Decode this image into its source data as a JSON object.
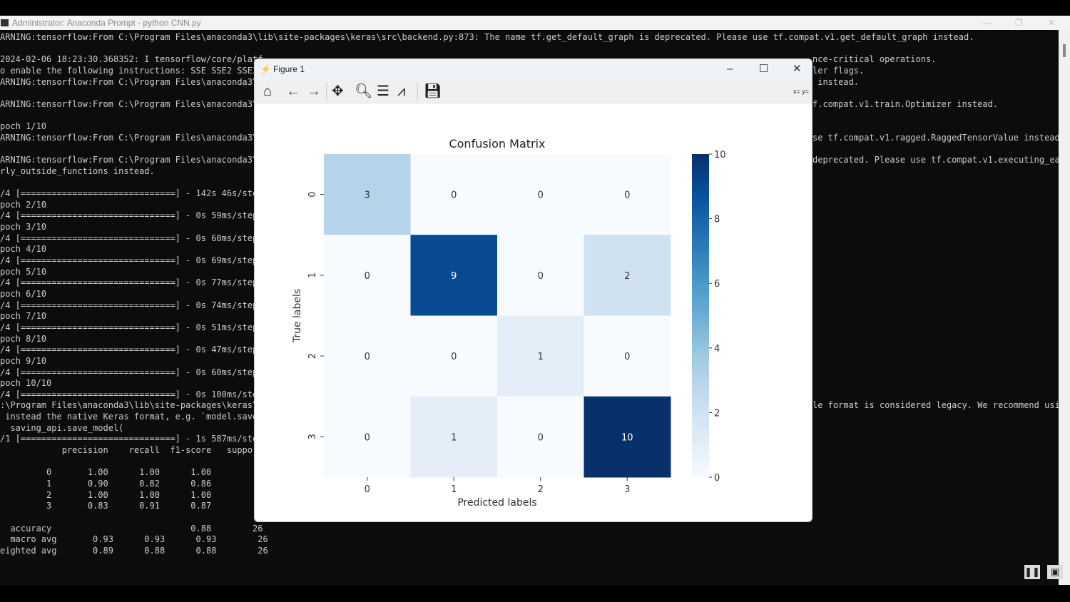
{
  "terminal": {
    "title": "Administrator: Anaconda Prompt - python  CNN.py",
    "lines": [
      {
        "row": 0,
        "left": "ARNING:tensorflow:From C:\\Program Files\\anaconda3\\lib\\site-packages\\keras\\src\\backend.py:873: The name tf.get_default_graph is deprecated. Please use tf.compat.v1.get_default_graph instead.",
        "right": ""
      },
      {
        "row": 2,
        "left": "2024-02-06 18:23:30.368352: I tensorflow/core/platf",
        "right": "nce-critical operations."
      },
      {
        "row": 3,
        "left": "o enable the following instructions: SSE SSE2 SSE3",
        "right": "ler flags."
      },
      {
        "row": 4,
        "left": "ARNING:tensorflow:From C:\\Program Files\\anaconda3\\",
        "right": " instead."
      },
      {
        "row": 6,
        "left": "ARNING:tensorflow:From C:\\Program Files\\anaconda3\\",
        "right": "f.compat.v1.train.Optimizer instead."
      },
      {
        "row": 8,
        "left": "poch 1/10",
        "right": ""
      },
      {
        "row": 9,
        "left": "ARNING:tensorflow:From C:\\Program Files\\anaconda3\\",
        "right": "se tf.compat.v1.ragged.RaggedTensorValue instead."
      },
      {
        "row": 11,
        "left": "ARNING:tensorflow:From C:\\Program Files\\anaconda3\\",
        "right": "deprecated. Please use tf.compat.v1.executing_eag"
      },
      {
        "row": 12,
        "left": "rly_outside_functions instead.",
        "right": ""
      },
      {
        "row": 14,
        "left": "/4 [==============================] - 142s 46s/ste",
        "right": ""
      },
      {
        "row": 15,
        "left": "poch 2/10",
        "right": ""
      },
      {
        "row": 16,
        "left": "/4 [==============================] - 0s 59ms/step",
        "right": ""
      },
      {
        "row": 17,
        "left": "poch 3/10",
        "right": ""
      },
      {
        "row": 18,
        "left": "/4 [==============================] - 0s 60ms/step",
        "right": ""
      },
      {
        "row": 19,
        "left": "poch 4/10",
        "right": ""
      },
      {
        "row": 20,
        "left": "/4 [==============================] - 0s 69ms/step",
        "right": ""
      },
      {
        "row": 21,
        "left": "poch 5/10",
        "right": ""
      },
      {
        "row": 22,
        "left": "/4 [==============================] - 0s 77ms/step",
        "right": ""
      },
      {
        "row": 23,
        "left": "poch 6/10",
        "right": ""
      },
      {
        "row": 24,
        "left": "/4 [==============================] - 0s 74ms/step",
        "right": ""
      },
      {
        "row": 25,
        "left": "poch 7/10",
        "right": ""
      },
      {
        "row": 26,
        "left": "/4 [==============================] - 0s 51ms/step",
        "right": ""
      },
      {
        "row": 27,
        "left": "poch 8/10",
        "right": ""
      },
      {
        "row": 28,
        "left": "/4 [==============================] - 0s 47ms/step",
        "right": ""
      },
      {
        "row": 29,
        "left": "poch 9/10",
        "right": ""
      },
      {
        "row": 30,
        "left": "/4 [==============================] - 0s 60ms/step",
        "right": ""
      },
      {
        "row": 31,
        "left": "poch 10/10",
        "right": ""
      },
      {
        "row": 32,
        "left": "/4 [==============================] - 0s 100ms/ste",
        "right": ""
      },
      {
        "row": 33,
        "left": ":\\Program Files\\anaconda3\\lib\\site-packages\\keras\\",
        "right": "le format is considered legacy. We recommend usin"
      },
      {
        "row": 34,
        "left": " instead the native Keras format, e.g. `model.save",
        "right": ""
      },
      {
        "row": 35,
        "left": "  saving_api.save_model(",
        "right": ""
      },
      {
        "row": 36,
        "left": "/1 [==============================] - 1s 587ms/ste",
        "right": ""
      },
      {
        "row": 37,
        "left": "            precision    recall  f1-score   suppo",
        "right": ""
      },
      {
        "row": 39,
        "left": "         0       1.00      1.00      1.00",
        "right": ""
      },
      {
        "row": 40,
        "left": "         1       0.90      0.82      0.86",
        "right": ""
      },
      {
        "row": 41,
        "left": "         2       1.00      1.00      1.00",
        "right": ""
      },
      {
        "row": 42,
        "left": "         3       0.83      0.91      0.87",
        "right": ""
      },
      {
        "row": 44,
        "left": "  accuracy                           0.88        26",
        "right": ""
      },
      {
        "row": 45,
        "left": "  macro avg       0.93      0.93      0.93        26",
        "right": ""
      },
      {
        "row": 46,
        "left": "eighted avg       0.89      0.88      0.88        26",
        "right": ""
      }
    ]
  },
  "figure": {
    "title": "Figure 1",
    "coords": "x= y=",
    "toolbar": [
      "home-icon",
      "back-icon",
      "forward-icon",
      "pan-icon",
      "zoom-icon",
      "configure-subplots-icon",
      "edit-axis-icon",
      "save-icon"
    ]
  },
  "chart_data": {
    "type": "heatmap",
    "title": "Confusion Matrix",
    "xlabel": "Predicted labels",
    "ylabel": "True labels",
    "x_categories": [
      "0",
      "1",
      "2",
      "3"
    ],
    "y_categories": [
      "0",
      "1",
      "2",
      "3"
    ],
    "values": [
      [
        3,
        0,
        0,
        0
      ],
      [
        0,
        9,
        0,
        2
      ],
      [
        0,
        0,
        1,
        0
      ],
      [
        0,
        1,
        0,
        10
      ]
    ],
    "colormap": "Blues",
    "colorbar": {
      "range": [
        0,
        10
      ],
      "ticks": [
        "0",
        "2",
        "4",
        "6",
        "8",
        "10"
      ]
    }
  }
}
